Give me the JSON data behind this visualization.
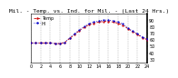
{
  "title": "Mil. - Temp. vs. Ind. for Mil. - (Last 24 Hrs.)",
  "background_color": "#ffffff",
  "plot_bg_color": "#ffffff",
  "grid_color": "#888888",
  "red_line_color": "#cc0000",
  "blue_line_color": "#0000cc",
  "ylim": [
    25,
    100
  ],
  "y_ticks": [
    30,
    40,
    50,
    60,
    70,
    80,
    90
  ],
  "hours": [
    0,
    1,
    2,
    3,
    4,
    5,
    6,
    7,
    8,
    9,
    10,
    11,
    12,
    13,
    14,
    15,
    16,
    17,
    18,
    19,
    20,
    21,
    22,
    23,
    24
  ],
  "temp": [
    55,
    55,
    55,
    55,
    55,
    54,
    54,
    56,
    62,
    68,
    74,
    79,
    83,
    85,
    87,
    88,
    88,
    87,
    85,
    82,
    77,
    72,
    68,
    63,
    60
  ],
  "heat_index": [
    55,
    55,
    55,
    55,
    55,
    54,
    54,
    56,
    63,
    69,
    75,
    80,
    85,
    87,
    89,
    90,
    90,
    89,
    87,
    84,
    78,
    73,
    69,
    64,
    61
  ],
  "title_fontsize": 4.5,
  "tick_fontsize": 3.5,
  "legend_fontsize": 3.5
}
